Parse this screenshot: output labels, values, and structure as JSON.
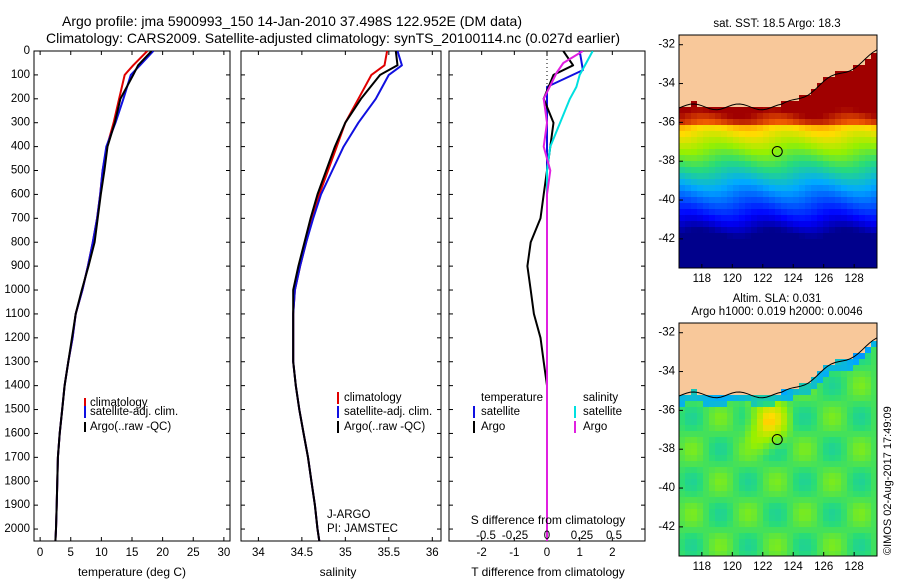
{
  "header": {
    "line1": "Argo profile: jma 5900993_150 14-Jan-2010 37.498S 122.952E (DM data)",
    "line2": "Climatology: CARS2009. Satellite-adjusted climatology: synTS_20100114.nc (0.027d earlier)"
  },
  "watermark": "©IMOS 02-Aug-2017 17:49:09",
  "colors": {
    "climatology": "#e00000",
    "satellite": "#1010e0",
    "argo": "#000000",
    "argo_salinity_diff": "#e020e0",
    "satellite_salinity_diff": "#00e0e0",
    "land": "#f8c89a"
  },
  "chart_data": [
    {
      "type": "line",
      "panel": "temperature",
      "xlabel": "temperature (deg C)",
      "ylabel": "",
      "xlim": [
        -1,
        31
      ],
      "ylim": [
        2050,
        0
      ],
      "xticks": [
        0,
        5,
        10,
        15,
        20,
        25,
        30
      ],
      "yticks": [
        0,
        100,
        200,
        300,
        400,
        500,
        600,
        700,
        800,
        900,
        1000,
        1100,
        1200,
        1300,
        1400,
        1500,
        1600,
        1700,
        1800,
        1900,
        2000
      ],
      "legend": [
        "climatology",
        "satellite-adj. clim.",
        "Argo(..raw -QC)"
      ],
      "series": [
        {
          "name": "climatology",
          "x": [
            17.5,
            15.2,
            13.8,
            12.9,
            12.0,
            10.9,
            10.2,
            9.8,
            9.3,
            8.6,
            7.8,
            6.9,
            5.8,
            5.3,
            4.6,
            4.0,
            3.6,
            3.2,
            2.9,
            2.8,
            2.7,
            2.6,
            2.5
          ],
          "y": [
            0,
            60,
            100,
            200,
            300,
            400,
            500,
            600,
            700,
            800,
            900,
            1000,
            1100,
            1200,
            1300,
            1400,
            1500,
            1600,
            1700,
            1800,
            1900,
            2000,
            2050
          ]
        },
        {
          "name": "satellite-adj. clim.",
          "x": [
            18.5,
            16.3,
            14.8,
            13.6,
            12.3,
            10.8,
            10.2,
            9.8,
            9.3,
            8.6,
            7.8,
            6.9,
            5.8,
            5.3,
            4.6,
            4.0,
            3.6,
            3.2,
            2.9,
            2.8,
            2.7,
            2.6,
            2.5
          ],
          "y": [
            0,
            60,
            100,
            200,
            300,
            400,
            500,
            600,
            700,
            800,
            900,
            1000,
            1100,
            1200,
            1300,
            1400,
            1500,
            1600,
            1700,
            1800,
            1900,
            2000,
            2050
          ]
        },
        {
          "name": "Argo(..raw -QC)",
          "x": [
            18.2,
            16.0,
            15.2,
            13.1,
            12.2,
            11.0,
            10.5,
            9.9,
            9.4,
            8.9,
            7.9,
            6.8,
            5.8,
            5.2,
            4.6,
            4.0,
            3.6,
            3.2,
            2.9,
            2.8,
            2.7,
            2.6,
            2.5
          ],
          "y": [
            0,
            60,
            100,
            200,
            300,
            400,
            500,
            600,
            700,
            800,
            900,
            1000,
            1100,
            1200,
            1300,
            1400,
            1500,
            1600,
            1700,
            1800,
            1900,
            2000,
            2050
          ]
        }
      ]
    },
    {
      "type": "line",
      "panel": "salinity",
      "xlabel": "salinity",
      "xlim": [
        33.8,
        36.1
      ],
      "ylim": [
        2050,
        0
      ],
      "xticks": [
        34,
        34.5,
        35,
        35.5,
        36
      ],
      "legend": [
        "climatology",
        "satellite-adj. clim.",
        "Argo(..raw -QC)"
      ],
      "annotations": [
        "J-ARGO",
        "PI: JAMSTEC"
      ],
      "series": [
        {
          "name": "climatology",
          "x": [
            35.48,
            35.45,
            35.3,
            35.15,
            35.0,
            34.9,
            34.8,
            34.7,
            34.62,
            34.55,
            34.48,
            34.42,
            34.4,
            34.4,
            34.4,
            34.43,
            34.47,
            34.52,
            34.57,
            34.61,
            34.65,
            34.68,
            34.7
          ],
          "y": [
            0,
            60,
            100,
            200,
            300,
            400,
            500,
            600,
            700,
            800,
            900,
            1000,
            1100,
            1200,
            1300,
            1400,
            1500,
            1600,
            1700,
            1800,
            1900,
            2000,
            2050
          ]
        },
        {
          "name": "satellite-adj. clim.",
          "x": [
            35.6,
            35.65,
            35.5,
            35.35,
            35.15,
            34.98,
            34.85,
            34.72,
            34.63,
            34.55,
            34.48,
            34.42,
            34.4,
            34.4,
            34.4,
            34.43,
            34.47,
            34.52,
            34.57,
            34.61,
            34.65,
            34.68,
            34.7
          ],
          "y": [
            0,
            60,
            100,
            200,
            300,
            400,
            500,
            600,
            700,
            800,
            900,
            1000,
            1100,
            1200,
            1300,
            1400,
            1500,
            1600,
            1700,
            1800,
            1900,
            2000,
            2050
          ]
        },
        {
          "name": "Argo(..raw -QC)",
          "x": [
            35.58,
            35.6,
            35.4,
            35.18,
            35.0,
            34.88,
            34.78,
            34.68,
            34.6,
            34.53,
            34.46,
            34.4,
            34.4,
            34.4,
            34.4,
            34.43,
            34.47,
            34.52,
            34.57,
            34.61,
            34.65,
            34.68,
            34.7
          ],
          "y": [
            0,
            60,
            100,
            200,
            300,
            400,
            500,
            600,
            700,
            800,
            900,
            1000,
            1100,
            1200,
            1300,
            1400,
            1500,
            1600,
            1700,
            1800,
            1900,
            2000,
            2050
          ]
        }
      ]
    },
    {
      "type": "line",
      "panel": "difference",
      "xlabel": "T difference from climatology",
      "xlabel_top": "S difference from climatology",
      "xlim": [
        -3,
        3
      ],
      "ylim": [
        2050,
        0
      ],
      "xticks": [
        -2,
        -1,
        0,
        1,
        2
      ],
      "xticks_top": [
        "-0.5",
        "-0.25",
        "0",
        "0.25",
        "0.5"
      ],
      "legend_left_title": "temperature",
      "legend_right_title": "salinity",
      "legend": [
        "satellite",
        "Argo",
        "satellite",
        "Argo"
      ],
      "series": [
        {
          "name": "satellite",
          "group": "temperature",
          "x": [
            1.0,
            1.1,
            0.0,
            0.0,
            0.0,
            0.0,
            0.0,
            0.0
          ],
          "y": [
            0,
            80,
            150,
            300,
            500,
            1000,
            1500,
            2050
          ]
        },
        {
          "name": "Argo",
          "group": "temperature",
          "x": [
            0.5,
            0.8,
            0.2,
            -0.1,
            0.2,
            0.1,
            0.0,
            -0.1,
            -0.2,
            -0.5,
            -0.6,
            -0.5,
            -0.4,
            -0.2,
            -0.1,
            0.0,
            0.0,
            0.0
          ],
          "y": [
            0,
            60,
            100,
            200,
            300,
            400,
            500,
            600,
            700,
            800,
            900,
            1000,
            1100,
            1200,
            1300,
            1400,
            1600,
            2050
          ]
        },
        {
          "name": "satellite",
          "group": "salinity",
          "x": [
            1.4,
            1.2,
            1.0,
            0.9,
            0.7,
            0.4,
            0.1,
            0.0,
            0.0,
            0.0
          ],
          "y": [
            0,
            50,
            100,
            150,
            200,
            300,
            400,
            500,
            1000,
            2050
          ]
        },
        {
          "name": "Argo",
          "group": "salinity",
          "x": [
            1.1,
            0.5,
            0.3,
            -0.1,
            0.0,
            -0.1,
            0.1,
            0.0,
            0.0,
            0.0
          ],
          "y": [
            0,
            50,
            90,
            200,
            300,
            400,
            500,
            600,
            1000,
            2050
          ]
        }
      ]
    },
    {
      "type": "heatmap",
      "panel": "sst_map",
      "title": "sat. SST: 18.5 Argo: 18.3",
      "xticks": [
        118,
        120,
        122,
        124,
        126,
        128
      ],
      "yticks": [
        -32,
        -34,
        -36,
        -38,
        -40,
        -42
      ],
      "xlim": [
        116.5,
        129.5
      ],
      "ylim": [
        -43.5,
        -31.5
      ],
      "marker": {
        "lon": 122.952,
        "lat": -37.498
      }
    },
    {
      "type": "heatmap",
      "panel": "sla_map",
      "title": "Altim. SLA: 0.031",
      "subtitle": "Argo h1000: 0.019 h2000: 0.0046",
      "xticks": [
        118,
        120,
        122,
        124,
        126,
        128
      ],
      "yticks": [
        -32,
        -34,
        -36,
        -38,
        -40,
        -42
      ],
      "xlim": [
        116.5,
        129.5
      ],
      "ylim": [
        -43.5,
        -31.5
      ],
      "marker": {
        "lon": 122.952,
        "lat": -37.498
      }
    }
  ]
}
